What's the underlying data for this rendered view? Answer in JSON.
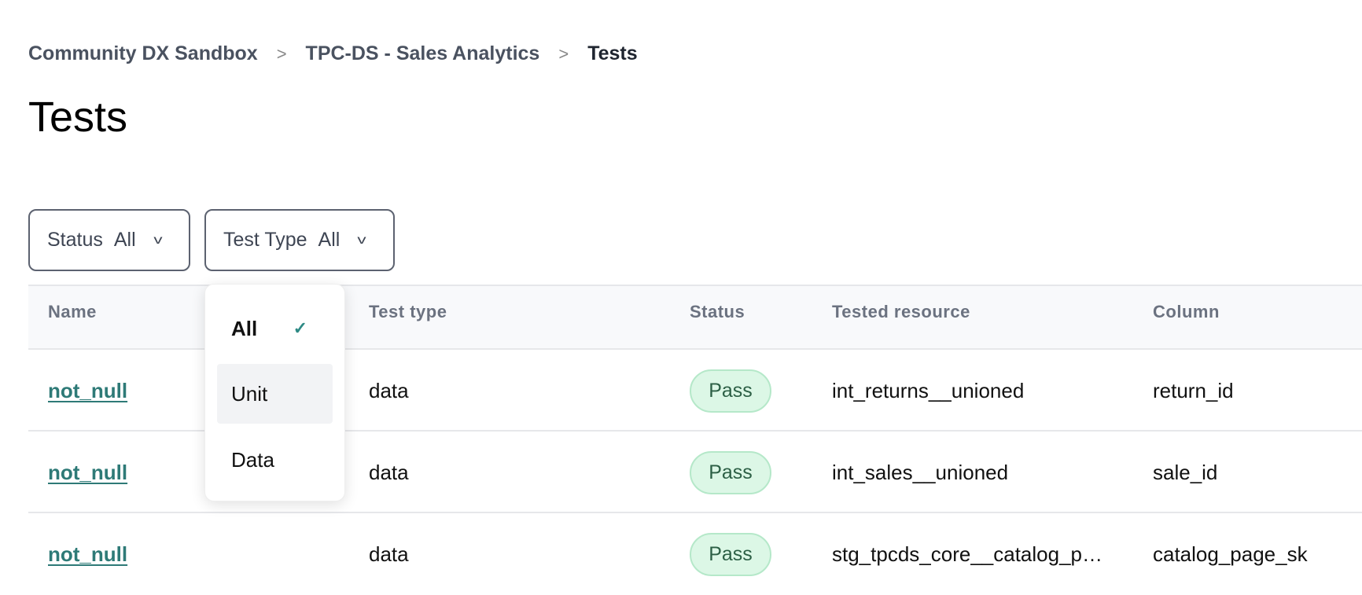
{
  "breadcrumb": [
    "Community DX Sandbox",
    "TPC-DS - Sales Analytics",
    "Tests"
  ],
  "page_title": "Tests",
  "filters": {
    "status": {
      "label": "Status",
      "value": "All"
    },
    "test_type": {
      "label": "Test Type",
      "value": "All"
    }
  },
  "dropdown": {
    "options": [
      "All",
      "Unit",
      "Data"
    ],
    "selected": "All",
    "hovered": "Unit"
  },
  "table": {
    "headers": [
      "Name",
      "Test type",
      "Status",
      "Tested resource",
      "Column"
    ],
    "rows": [
      {
        "name": "not_null",
        "type": "data",
        "status": "Pass",
        "resource": "int_returns__unioned",
        "column": "return_id"
      },
      {
        "name": "not_null",
        "type": "data",
        "status": "Pass",
        "resource": "int_sales__unioned",
        "column": "sale_id"
      },
      {
        "name": "not_null",
        "type": "data",
        "status": "Pass",
        "resource": "stg_tpcds_core__catalog_p…",
        "column": "catalog_page_sk"
      }
    ]
  },
  "colors": {
    "link": "#2e7a77",
    "pass_bg": "#dcf7e6",
    "pass_text": "#2c5f45"
  }
}
